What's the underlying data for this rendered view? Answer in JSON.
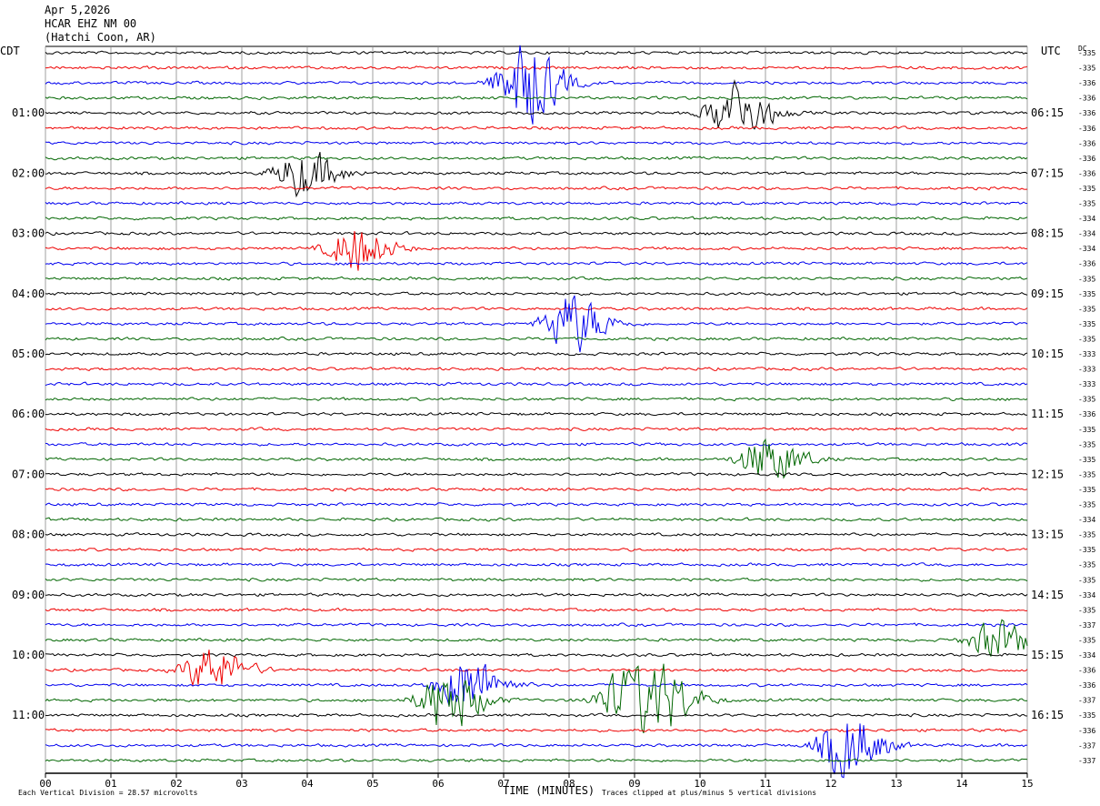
{
  "header": {
    "date": "Apr 5,2026",
    "station": "HCAR EHZ NM 00",
    "location": "(Hatchi Coon, AR)"
  },
  "chart_data": {
    "type": "line",
    "left_timezone": "CDT",
    "right_timezone": "UTC",
    "dc_label": "DC",
    "xlabel": "TIME (MINUTES)",
    "x_ticks": [
      "00",
      "01",
      "02",
      "03",
      "04",
      "05",
      "06",
      "07",
      "08",
      "09",
      "10",
      "11",
      "12",
      "13",
      "14",
      "15"
    ],
    "xlim": [
      0,
      15
    ],
    "trace_minutes": 15,
    "num_traces": 48,
    "trace_colors": [
      "#000000",
      "#ee0000",
      "#0000ee",
      "#006600"
    ],
    "left_hour_labels": [
      "01:00",
      "02:00",
      "03:00",
      "04:00",
      "05:00",
      "06:00",
      "07:00",
      "08:00",
      "09:00",
      "10:00",
      "11:00"
    ],
    "right_hour_labels": [
      "06:15",
      "07:15",
      "08:15",
      "09:15",
      "10:15",
      "11:15",
      "12:15",
      "13:15",
      "14:15",
      "15:15",
      "16:15"
    ],
    "dc_offsets": [
      "-335",
      "-335",
      "-336",
      "-336",
      "-336",
      "-336",
      "-336",
      "-336",
      "-336",
      "-335",
      "-335",
      "-334",
      "-334",
      "-334",
      "-336",
      "-335",
      "-335",
      "-335",
      "-335",
      "-335",
      "-333",
      "-333",
      "-333",
      "-335",
      "-336",
      "-335",
      "-335",
      "-335",
      "-335",
      "-335",
      "-335",
      "-334",
      "-335",
      "-335",
      "-335",
      "-335",
      "-334",
      "-335",
      "-337",
      "-335",
      "-334",
      "-336",
      "-336",
      "-337",
      "-335",
      "-336",
      "-337",
      "-337"
    ],
    "events": [
      {
        "trace": 2,
        "minute": 7.3,
        "amplitude": 5.0
      },
      {
        "trace": 4,
        "minute": 10.5,
        "amplitude": 3.3
      },
      {
        "trace": 8,
        "minute": 3.9,
        "amplitude": 2.6
      },
      {
        "trace": 13,
        "minute": 4.7,
        "amplitude": 2.5
      },
      {
        "trace": 18,
        "minute": 8.0,
        "amplitude": 3.3
      },
      {
        "trace": 27,
        "minute": 11.0,
        "amplitude": 2.7
      },
      {
        "trace": 39,
        "minute": 14.5,
        "amplitude": 2.2
      },
      {
        "trace": 41,
        "minute": 2.5,
        "amplitude": 2.6
      },
      {
        "trace": 42,
        "minute": 6.4,
        "amplitude": 3.2
      },
      {
        "trace": 43,
        "minute": 6.1,
        "amplitude": 3.5
      },
      {
        "trace": 43,
        "minute": 8.8,
        "amplitude": 3.0
      },
      {
        "trace": 43,
        "minute": 9.4,
        "amplitude": 3.0
      },
      {
        "trace": 46,
        "minute": 12.2,
        "amplitude": 3.8
      }
    ],
    "scale_note": "Each Vertical Division =  28.57 microvolts",
    "clip_note": "Traces clipped at plus/minus 5 vertical divisions"
  }
}
